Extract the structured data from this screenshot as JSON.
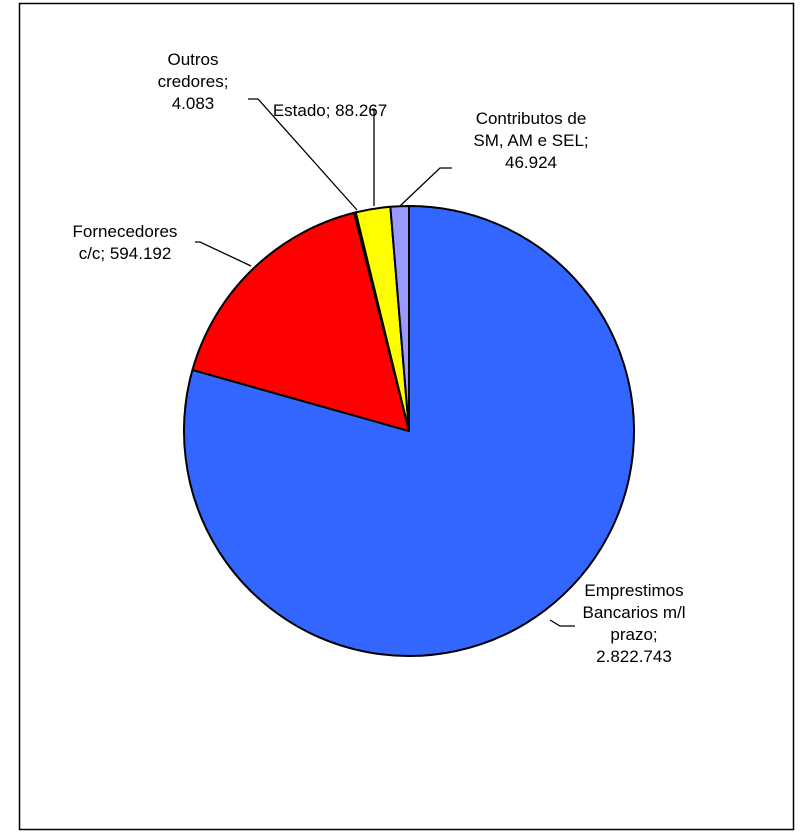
{
  "chart_data": {
    "type": "pie",
    "title": "",
    "slices": [
      {
        "label_lines": [
          "Emprestimos",
          "Bancarios m/l",
          "prazo;",
          "2.822.743"
        ],
        "value": 2822743,
        "color": "#3366FF"
      },
      {
        "label_lines": [
          "Fornecedores",
          "c/c; 594.192"
        ],
        "value": 594192,
        "color": "#FF0000"
      },
      {
        "label_lines": [
          "Outros",
          "credores;",
          "4.083"
        ],
        "value": 4083,
        "color": "#FFFFFF"
      },
      {
        "label_lines": [
          "Estado; 88.267"
        ],
        "value": 88267,
        "color": "#FFFF00"
      },
      {
        "label_lines": [
          "Contributos de",
          "SM, AM e SEL;",
          "46.924"
        ],
        "value": 46924,
        "color": "#9999FF"
      }
    ],
    "slice_order": "clockwise from 12 o'clock: Emprestimos, Fornecedores, Outros credores, Estado, Contributos",
    "legend": "none",
    "data_labels": "category and value, outside with leader lines"
  }
}
